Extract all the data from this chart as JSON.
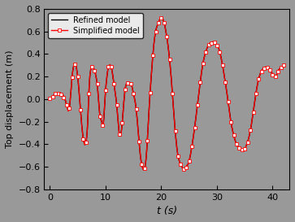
{
  "title": "",
  "xlabel": "t (s)",
  "ylabel": "Top displacement (m)",
  "xlim": [
    -1,
    43
  ],
  "ylim": [
    -0.8,
    0.8
  ],
  "xticks": [
    0,
    10,
    20,
    30,
    40
  ],
  "yticks": [
    -0.8,
    -0.6,
    -0.4,
    -0.2,
    0.0,
    0.2,
    0.4,
    0.6,
    0.8
  ],
  "refined_color": "#000000",
  "simplified_color": "#ff0000",
  "marker_color": "#ffffff",
  "background_color": "#999999",
  "legend_labels": [
    "Refined model",
    "Simplified model"
  ],
  "marker": "s",
  "linewidth": 1.0,
  "marker_size": 3.0
}
